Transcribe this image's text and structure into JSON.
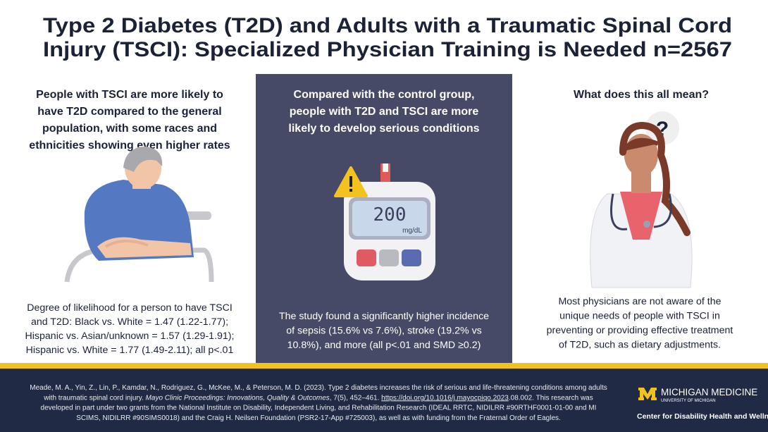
{
  "header": {
    "title_lines": [
      "Type 2 Diabetes (T2D) and Adults with a Traumatic Spinal Cord",
      "Injury (TSCI): Specialized Physician Training is Needed n=2567"
    ]
  },
  "columns": [
    {
      "heading_lines": [
        "People with TSCI are more likely to",
        "have T2D compared to the general",
        "population, with some races and",
        "ethnicities showing even higher rates"
      ],
      "body_lines": [
        "Degree of likelihood for a person to have TSCI",
        "and T2D: Black vs. White = 1.47 (1.22-1.77);",
        "Hispanic vs. Asian/unknown = 1.57 (1.29-1.91);",
        "Hispanic vs. White = 1.77 (1.49-2.11); all p<.01"
      ]
    },
    {
      "heading_lines": [
        "Compared with the control group,",
        "people with T2D and TSCI are more",
        "likely to develop serious conditions"
      ],
      "body_lines": [
        "The study found a significantly higher incidence",
        "of sepsis (15.6% vs 7.6%), stroke (19.2% vs",
        "10.8%), and more (all p<.01 and SMD ≥0.2)"
      ]
    },
    {
      "heading_lines": [
        "What does this all mean?"
      ],
      "body_lines": [
        "Most physicians are not aware of the",
        "unique needs of people with TSCI in",
        "preventing or providing effective treatment",
        "of T2D, such as dietary adjustments."
      ]
    }
  ],
  "meter": {
    "reading": "200",
    "unit": "mg/dL"
  },
  "doctor": {
    "thought": "?"
  },
  "footer": {
    "citation_lines": [
      [
        "Meade, M. A., Yin, Z., Lin, P., Kamdar, N., Rodriguez, G., McKee, M., & Peterson, M. D. (2023). Type 2 diabetes increases the risk of serious and life-threatening conditions among adults"
      ],
      [
        "with traumatic spinal cord injury. ",
        "Mayo Clinic Proceedings: Innovations, Quality & Outcomes",
        ", 7(5), 452–461. ",
        "https://doi.org/10.1016/j.mayocpiqo.2023",
        ".08.002. This research was"
      ],
      [
        "developed in part under two grants from the National Institute on Disability, Independent Living, and Rehabilitation Research (IDEAL RRTC, NIDILRR #90RTHF0001-01-00 and MI"
      ],
      [
        "SCIMS, NIDILRR #90SIMS0018) and the Craig H. Neilsen Foundation (PSR2-17-App #725003), as well as with funding from the Fraternal Order of Eagles."
      ]
    ],
    "logo": {
      "name": "MICHIGAN MEDICINE",
      "university": "UNIVERSITY OF MICHIGAN",
      "center": "Center for Disability Health and Wellness"
    }
  }
}
